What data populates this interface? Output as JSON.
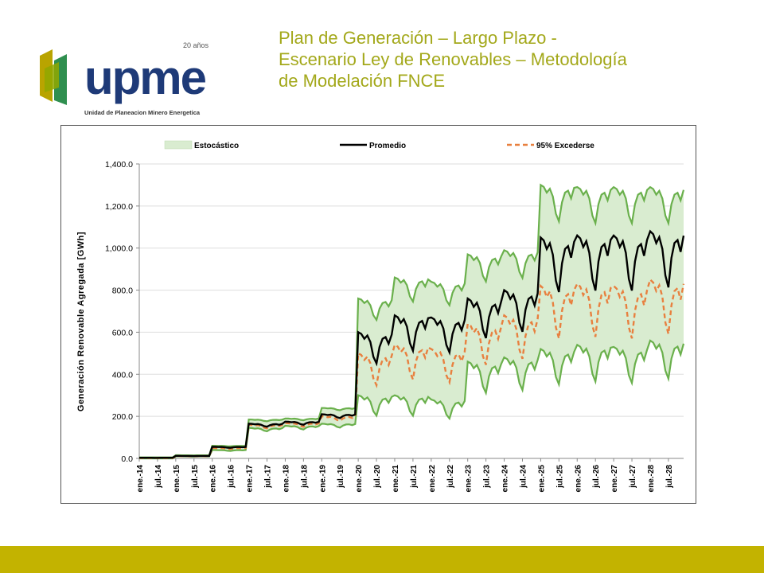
{
  "slide": {
    "title_lines": [
      "Plan de Generación – Largo Plazo -",
      "Escenario Ley de Renovables – Metodología",
      "de Modelación FNCE"
    ]
  },
  "logo": {
    "wordmark": "upme",
    "anniversary": "20 años",
    "tagline": "Unidad de Planeacion Minero Energetica",
    "colors": {
      "blue": "#1e3a78",
      "gold": "#b9a400",
      "green": "#2f8f4f"
    }
  },
  "colors": {
    "accent": "#c3b300",
    "title": "#a3a81a",
    "band_fill": "#d9ecd0",
    "band_line": "#6ab04c",
    "mean_line": "#000000",
    "exceed_line": "#e8803f"
  },
  "chart_data": {
    "type": "line",
    "title": "",
    "xlabel": "",
    "ylabel": "Generación Renovable Agregada  [GWh]",
    "ylim": [
      0,
      1400
    ],
    "yticks": [
      "0.0",
      "200.0",
      "400.0",
      "600.0",
      "800.0",
      "1,000.0",
      "1,200.0",
      "1,400.0"
    ],
    "grid": "horizontal",
    "legend_position": "top",
    "x_tick_labels": [
      "ene.-14",
      "jul.-14",
      "ene.-15",
      "jul.-15",
      "ene.-16",
      "jul.-16",
      "ene.-17",
      "jul.-17",
      "ene.-18",
      "jul.-18",
      "ene.-19",
      "jul.-19",
      "ene.-20",
      "jul.-20",
      "ene.-21",
      "jul.-21",
      "ene.-22",
      "jul.-22",
      "ene.-23",
      "jul.-23",
      "ene.-24",
      "jul.-24",
      "ene.-25",
      "jul.-25",
      "ene.-26",
      "jul.-26",
      "ene.-27",
      "jul.-27",
      "ene.-28",
      "jul.-28"
    ],
    "x_start": "2014-01",
    "x_end": "2028-12",
    "legend": [
      {
        "name": "Estocástico",
        "style": "band",
        "color": "#d9ecd0"
      },
      {
        "name": "Promedio",
        "style": "solid",
        "color": "#000000"
      },
      {
        "name": "95% Excederse",
        "style": "dashed",
        "color": "#e8803f"
      }
    ],
    "series": [
      {
        "name": "Estocástico",
        "role": "band",
        "upper_by_year": [
          5,
          15,
          60,
          185,
          190,
          240,
          760,
          860,
          840,
          970,
          990,
          1300,
          1290,
          1290,
          1290
        ],
        "lower_by_year": [
          0,
          10,
          40,
          145,
          155,
          165,
          300,
          300,
          280,
          460,
          480,
          520,
          540,
          530,
          560
        ]
      },
      {
        "name": "Promedio",
        "role": "mean",
        "by_year_mean": [
          3,
          12,
          55,
          165,
          175,
          210,
          600,
          680,
          670,
          760,
          800,
          1050,
          1060,
          1060,
          1080
        ]
      },
      {
        "name": "95% Excederse",
        "role": "p95",
        "by_year_mean": [
          2,
          11,
          50,
          160,
          168,
          200,
          500,
          540,
          520,
          640,
          680,
          820,
          830,
          820,
          850
        ]
      }
    ]
  }
}
